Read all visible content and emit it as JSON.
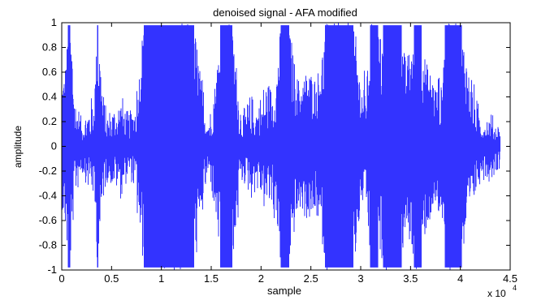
{
  "chart_data": {
    "type": "line",
    "title": "denoised signal - AFA modified",
    "xlabel": "sample",
    "ylabel": "amplitude",
    "x_multiplier_label": "x 10",
    "x_multiplier_exponent": "4",
    "xlim": [
      0,
      45000
    ],
    "ylim": [
      -1,
      1
    ],
    "x_ticks": [
      0,
      5000,
      10000,
      15000,
      20000,
      25000,
      30000,
      35000,
      40000,
      45000
    ],
    "x_tick_labels": [
      "0",
      "0.5",
      "1",
      "1.5",
      "2",
      "2.5",
      "3",
      "3.5",
      "4",
      "4.5"
    ],
    "y_ticks": [
      -1,
      -0.8,
      -0.6,
      -0.4,
      -0.2,
      0,
      0.2,
      0.4,
      0.6,
      0.8,
      1
    ],
    "y_tick_labels": [
      "-1",
      "-0.8",
      "-0.6",
      "-0.4",
      "-0.2",
      "0",
      "0.2",
      "0.4",
      "0.6",
      "0.8",
      "1"
    ],
    "grid": false,
    "series": [
      {
        "color": "#3333ff",
        "x_range": [
          0,
          44000
        ],
        "envelope_x": [
          0,
          300,
          700,
          1000,
          1300,
          1600,
          2000,
          2400,
          2700,
          3200,
          3600,
          3800,
          4200,
          4500,
          5000,
          5500,
          6000,
          6500,
          7000,
          7400,
          7700,
          8000,
          8500,
          9000,
          9500,
          10000,
          10500,
          11000,
          11500,
          12000,
          12500,
          13000,
          13500,
          13900,
          14300,
          14700,
          15000,
          15500,
          16000,
          16300,
          16700,
          17000,
          17500,
          17800,
          18200,
          18600,
          19000,
          19500,
          20000,
          20500,
          21000,
          21500,
          21800,
          22200,
          22600,
          23000,
          23500,
          24000,
          24500,
          25000,
          25500,
          26000,
          26500,
          27000,
          27500,
          28000,
          28500,
          29000,
          29500,
          30000,
          30500,
          31000,
          31500,
          32000,
          32500,
          33000,
          33500,
          34000,
          34500,
          35000,
          35500,
          36000,
          36500,
          37000,
          37500,
          38000,
          38500,
          39000,
          39500,
          40000,
          40500,
          41000,
          41500,
          42000,
          42500,
          43000,
          43500,
          44000
        ],
        "envelope_amplitude": [
          0.5,
          0.6,
          1.0,
          0.9,
          0.3,
          0.25,
          0.15,
          0.2,
          0.25,
          0.3,
          1.0,
          0.8,
          0.3,
          0.2,
          0.22,
          0.25,
          0.3,
          0.2,
          0.2,
          0.3,
          0.5,
          0.9,
          1.0,
          1.0,
          1.0,
          1.0,
          1.0,
          1.0,
          1.0,
          1.0,
          1.0,
          1.0,
          0.9,
          0.6,
          0.3,
          0.2,
          0.22,
          0.6,
          1.0,
          1.0,
          1.0,
          1.0,
          0.7,
          0.3,
          0.2,
          0.25,
          0.3,
          0.25,
          0.3,
          0.4,
          0.35,
          0.5,
          0.9,
          1.0,
          1.0,
          0.9,
          0.6,
          0.5,
          0.6,
          0.6,
          0.55,
          0.7,
          1.0,
          1.0,
          1.0,
          1.0,
          1.0,
          1.0,
          0.9,
          0.5,
          0.4,
          1.0,
          1.0,
          0.9,
          1.0,
          1.0,
          1.0,
          1.0,
          0.7,
          0.8,
          1.0,
          1.0,
          0.7,
          0.6,
          0.5,
          0.4,
          1.0,
          1.0,
          1.0,
          1.0,
          0.8,
          0.5,
          0.3,
          0.2,
          0.18,
          0.2,
          0.15,
          0.12
        ]
      }
    ]
  }
}
